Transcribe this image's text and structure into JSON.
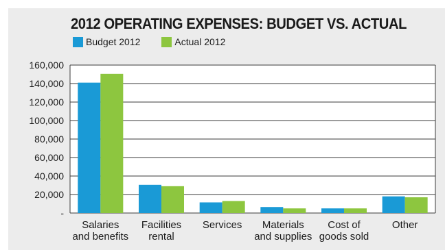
{
  "chart_data": {
    "type": "bar",
    "title": "2012 OPERATING EXPENSES: BUDGET VS. ACTUAL",
    "categories": [
      [
        "Salaries",
        "and benefits"
      ],
      [
        "Facilities",
        "rental"
      ],
      [
        "Services"
      ],
      [
        "Materials",
        "and supplies"
      ],
      [
        "Cost of",
        "goods sold"
      ],
      [
        "Other"
      ]
    ],
    "series": [
      {
        "name": "Budget 2012",
        "color": "#1a9ad6",
        "values": [
          141000,
          30500,
          11500,
          6500,
          5000,
          18000
        ]
      },
      {
        "name": "Actual 2012",
        "color": "#8dc63f",
        "values": [
          150500,
          29000,
          13000,
          5000,
          5000,
          17000
        ]
      }
    ],
    "ylim": [
      0,
      160000
    ],
    "yticks": [
      {
        "value": 160000,
        "label": "160,000"
      },
      {
        "value": 140000,
        "label": "140,000"
      },
      {
        "value": 120000,
        "label": "120,000"
      },
      {
        "value": 100000,
        "label": "100,000"
      },
      {
        "value": 80000,
        "label": "80,000"
      },
      {
        "value": 60000,
        "label": "60,000"
      },
      {
        "value": 40000,
        "label": "40,000"
      },
      {
        "value": 20000,
        "label": "20,000"
      },
      {
        "value": 0,
        "label": "-"
      }
    ],
    "grid": true,
    "legend_position": "top-left"
  }
}
